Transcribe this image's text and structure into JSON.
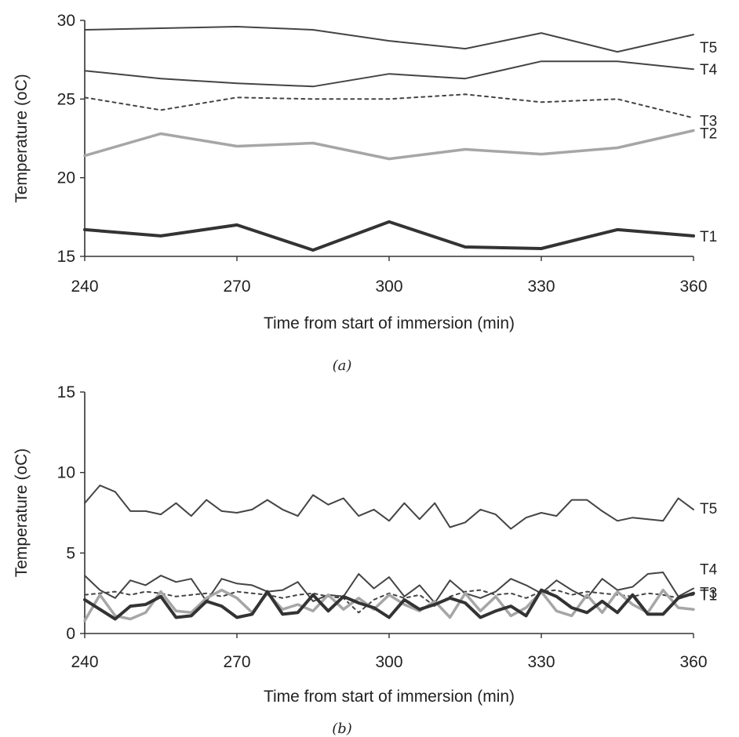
{
  "chart_data": [
    {
      "type": "line",
      "caption": "(a)",
      "xlabel": "Time from start of immersion (min)",
      "ylabel": "Temperature (oC)",
      "xlim": [
        240,
        360
      ],
      "ylim": [
        15,
        30
      ],
      "xticks": [
        240,
        270,
        300,
        330,
        360
      ],
      "yticks": [
        15,
        20,
        25,
        30
      ],
      "grid": false,
      "legend": "series labels at right end of lines",
      "x": [
        240,
        255,
        270,
        285,
        300,
        315,
        330,
        345,
        360
      ],
      "series": [
        {
          "name": "T5",
          "color": "#444444",
          "dash": "solid",
          "values": [
            29.4,
            29.5,
            29.6,
            29.4,
            28.7,
            28.2,
            29.2,
            28.0,
            29.1
          ]
        },
        {
          "name": "T4",
          "color": "#444444",
          "dash": "solid",
          "values": [
            26.8,
            26.3,
            26.0,
            25.8,
            26.6,
            26.3,
            27.4,
            27.4,
            26.9
          ]
        },
        {
          "name": "T3",
          "color": "#444444",
          "dash": "dotted",
          "values": [
            25.1,
            24.3,
            25.1,
            25.0,
            25.0,
            25.3,
            24.8,
            25.0,
            23.8
          ]
        },
        {
          "name": "T2",
          "color": "#a6a6a6",
          "dash": "solid",
          "values": [
            21.4,
            22.8,
            22.0,
            22.2,
            21.2,
            21.8,
            21.5,
            21.9,
            23.0
          ]
        },
        {
          "name": "T1",
          "color": "#333333",
          "dash": "solid",
          "values": [
            16.7,
            16.3,
            17.0,
            15.4,
            17.2,
            15.6,
            15.5,
            16.7,
            16.3
          ]
        }
      ]
    },
    {
      "type": "line",
      "caption": "(b)",
      "xlabel": "Time from start of immersion (min)",
      "ylabel": "Temperature (oC)",
      "xlim": [
        240,
        360
      ],
      "ylim": [
        0,
        15
      ],
      "xticks": [
        240,
        270,
        300,
        330,
        360
      ],
      "yticks": [
        0,
        5,
        10,
        15
      ],
      "grid": false,
      "legend": "series labels at right end of lines",
      "x": [
        240,
        243,
        246,
        249,
        252,
        255,
        258,
        261,
        264,
        267,
        270,
        273,
        276,
        279,
        282,
        285,
        288,
        291,
        294,
        297,
        300,
        303,
        306,
        309,
        312,
        315,
        318,
        321,
        324,
        327,
        330,
        333,
        336,
        339,
        342,
        345,
        348,
        351,
        354,
        357,
        360
      ],
      "series": [
        {
          "name": "T5",
          "color": "#444444",
          "dash": "solid",
          "values": [
            8.1,
            9.2,
            8.8,
            7.6,
            7.6,
            7.4,
            8.1,
            7.3,
            8.3,
            7.6,
            7.5,
            7.7,
            8.3,
            7.7,
            7.3,
            8.6,
            8.0,
            8.4,
            7.3,
            7.7,
            7.0,
            8.1,
            7.1,
            8.1,
            6.6,
            6.9,
            7.7,
            7.4,
            6.5,
            7.2,
            7.5,
            7.3,
            8.3,
            8.3,
            7.6,
            7.0,
            7.2,
            7.1,
            7.0,
            8.4,
            7.7
          ]
        },
        {
          "name": "T4",
          "color": "#444444",
          "dash": "solid",
          "values": [
            3.6,
            2.7,
            2.2,
            3.3,
            3.0,
            3.6,
            3.2,
            3.4,
            2.0,
            3.4,
            3.1,
            3.0,
            2.6,
            2.7,
            3.2,
            2.0,
            2.4,
            2.3,
            3.7,
            2.8,
            3.5,
            2.3,
            3.0,
            1.9,
            3.3,
            2.5,
            2.2,
            2.6,
            3.4,
            3.0,
            2.5,
            3.3,
            2.7,
            2.2,
            3.4,
            2.7,
            2.9,
            3.7,
            3.8,
            2.3,
            2.8
          ]
        },
        {
          "name": "T3",
          "color": "#444444",
          "dash": "dotted",
          "values": [
            2.4,
            2.5,
            2.6,
            2.4,
            2.6,
            2.5,
            2.3,
            2.4,
            2.5,
            2.3,
            2.6,
            2.5,
            2.4,
            2.2,
            2.4,
            2.5,
            2.3,
            2.2,
            1.3,
            2.1,
            2.5,
            2.2,
            2.4,
            1.7,
            2.3,
            2.6,
            2.7,
            2.4,
            2.5,
            2.2,
            2.6,
            2.7,
            2.4,
            2.6,
            2.5,
            2.4,
            2.3,
            2.5,
            2.4,
            2.2,
            2.4
          ]
        },
        {
          "name": "T2",
          "color": "#a6a6a6",
          "dash": "solid",
          "values": [
            0.8,
            2.4,
            1.1,
            0.9,
            1.3,
            2.6,
            1.4,
            1.3,
            2.2,
            2.7,
            2.2,
            1.3,
            2.5,
            1.5,
            1.8,
            1.4,
            2.4,
            1.5,
            2.2,
            1.5,
            2.4,
            1.8,
            1.4,
            2.0,
            1.0,
            2.5,
            1.4,
            2.3,
            1.1,
            1.6,
            2.6,
            1.4,
            1.1,
            2.4,
            1.3,
            2.6,
            1.8,
            1.3,
            2.7,
            1.6,
            1.5
          ]
        },
        {
          "name": "T1",
          "color": "#333333",
          "dash": "solid",
          "values": [
            2.1,
            1.5,
            0.9,
            1.7,
            1.8,
            2.3,
            1.0,
            1.1,
            2.0,
            1.7,
            1.0,
            1.2,
            2.6,
            1.2,
            1.3,
            2.4,
            1.4,
            2.3,
            1.9,
            1.6,
            1.0,
            2.1,
            1.5,
            1.8,
            2.2,
            1.9,
            1.0,
            1.4,
            1.7,
            1.1,
            2.7,
            2.3,
            1.6,
            1.3,
            2.0,
            1.3,
            2.4,
            1.2,
            1.2,
            2.2,
            2.5
          ]
        }
      ]
    }
  ]
}
